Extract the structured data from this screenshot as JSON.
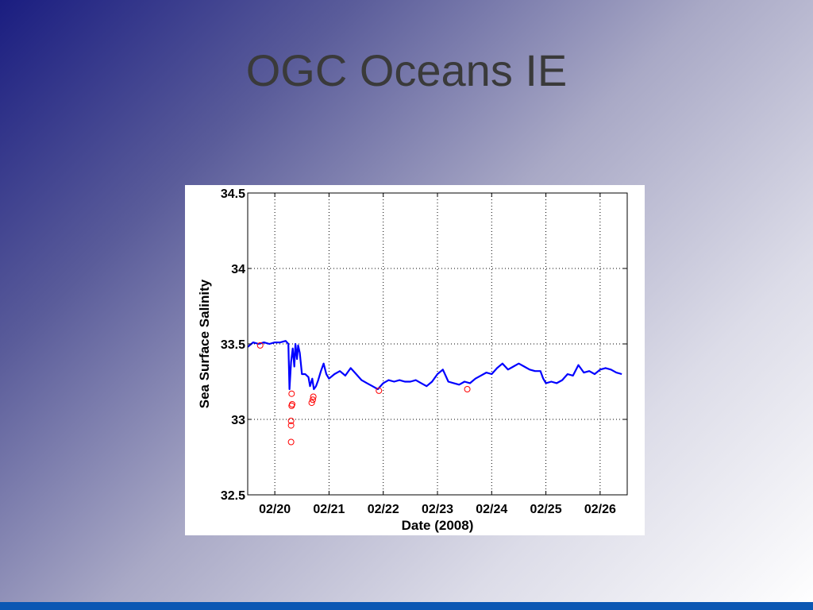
{
  "slide": {
    "title": "OGC Oceans IE"
  },
  "chart_data": {
    "type": "line",
    "title": "",
    "xlabel": "Date (2008)",
    "ylabel": "Sea Surface Salinity",
    "xlim": [
      19.5,
      26.5
    ],
    "ylim": [
      32.5,
      34.5
    ],
    "grid": true,
    "x_ticks": [
      {
        "value": 20,
        "label": "02/20"
      },
      {
        "value": 21,
        "label": "02/21"
      },
      {
        "value": 22,
        "label": "02/22"
      },
      {
        "value": 23,
        "label": "02/23"
      },
      {
        "value": 24,
        "label": "02/24"
      },
      {
        "value": 25,
        "label": "02/25"
      },
      {
        "value": 26,
        "label": "02/26"
      }
    ],
    "y_ticks": [
      {
        "value": 32.5,
        "label": "32.5"
      },
      {
        "value": 33,
        "label": "33"
      },
      {
        "value": 33.5,
        "label": "33.5"
      },
      {
        "value": 34,
        "label": "34"
      },
      {
        "value": 34.5,
        "label": "34.5"
      }
    ],
    "series": [
      {
        "style": "line",
        "color": "#0000ff",
        "points": [
          [
            19.5,
            33.48
          ],
          [
            19.6,
            33.51
          ],
          [
            19.7,
            33.5
          ],
          [
            19.8,
            33.51
          ],
          [
            19.9,
            33.5
          ],
          [
            20.0,
            33.51
          ],
          [
            20.1,
            33.51
          ],
          [
            20.2,
            33.52
          ],
          [
            20.25,
            33.5
          ],
          [
            20.27,
            33.2
          ],
          [
            20.3,
            33.38
          ],
          [
            20.33,
            33.47
          ],
          [
            20.36,
            33.35
          ],
          [
            20.38,
            33.5
          ],
          [
            20.41,
            33.4
          ],
          [
            20.43,
            33.49
          ],
          [
            20.46,
            33.44
          ],
          [
            20.5,
            33.3
          ],
          [
            20.56,
            33.3
          ],
          [
            20.62,
            33.28
          ],
          [
            20.65,
            33.22
          ],
          [
            20.69,
            33.27
          ],
          [
            20.72,
            33.2
          ],
          [
            20.76,
            33.22
          ],
          [
            20.8,
            33.26
          ],
          [
            20.85,
            33.32
          ],
          [
            20.9,
            33.37
          ],
          [
            20.95,
            33.3
          ],
          [
            21.0,
            33.27
          ],
          [
            21.1,
            33.3
          ],
          [
            21.2,
            33.32
          ],
          [
            21.3,
            33.29
          ],
          [
            21.4,
            33.34
          ],
          [
            21.5,
            33.3
          ],
          [
            21.6,
            33.26
          ],
          [
            21.7,
            33.24
          ],
          [
            21.8,
            33.22
          ],
          [
            21.9,
            33.2
          ],
          [
            22.0,
            33.24
          ],
          [
            22.1,
            33.26
          ],
          [
            22.2,
            33.25
          ],
          [
            22.3,
            33.26
          ],
          [
            22.4,
            33.25
          ],
          [
            22.5,
            33.25
          ],
          [
            22.6,
            33.26
          ],
          [
            22.7,
            33.24
          ],
          [
            22.8,
            33.22
          ],
          [
            22.9,
            33.25
          ],
          [
            23.0,
            33.3
          ],
          [
            23.1,
            33.33
          ],
          [
            23.2,
            33.25
          ],
          [
            23.3,
            33.24
          ],
          [
            23.4,
            33.23
          ],
          [
            23.5,
            33.25
          ],
          [
            23.6,
            33.24
          ],
          [
            23.7,
            33.27
          ],
          [
            23.8,
            33.29
          ],
          [
            23.9,
            33.31
          ],
          [
            24.0,
            33.3
          ],
          [
            24.1,
            33.34
          ],
          [
            24.2,
            33.37
          ],
          [
            24.3,
            33.33
          ],
          [
            24.4,
            33.35
          ],
          [
            24.5,
            33.37
          ],
          [
            24.6,
            33.35
          ],
          [
            24.7,
            33.33
          ],
          [
            24.8,
            33.32
          ],
          [
            24.9,
            33.32
          ],
          [
            24.95,
            33.27
          ],
          [
            25.0,
            33.24
          ],
          [
            25.1,
            33.25
          ],
          [
            25.2,
            33.24
          ],
          [
            25.3,
            33.26
          ],
          [
            25.4,
            33.3
          ],
          [
            25.5,
            33.29
          ],
          [
            25.6,
            33.36
          ],
          [
            25.7,
            33.31
          ],
          [
            25.8,
            33.32
          ],
          [
            25.9,
            33.3
          ],
          [
            26.0,
            33.33
          ],
          [
            26.1,
            33.34
          ],
          [
            26.2,
            33.33
          ],
          [
            26.3,
            33.31
          ],
          [
            26.4,
            33.3
          ]
        ]
      },
      {
        "style": "markers",
        "marker": "circle",
        "color": "#ff0000",
        "points": [
          [
            19.73,
            33.49
          ],
          [
            20.3,
            32.85
          ],
          [
            20.3,
            32.96
          ],
          [
            20.3,
            32.99
          ],
          [
            20.31,
            33.09
          ],
          [
            20.32,
            33.1
          ],
          [
            20.31,
            33.17
          ],
          [
            20.68,
            33.11
          ],
          [
            20.7,
            33.13
          ],
          [
            20.71,
            33.15
          ],
          [
            21.92,
            33.19
          ],
          [
            23.55,
            33.2
          ]
        ]
      }
    ]
  }
}
